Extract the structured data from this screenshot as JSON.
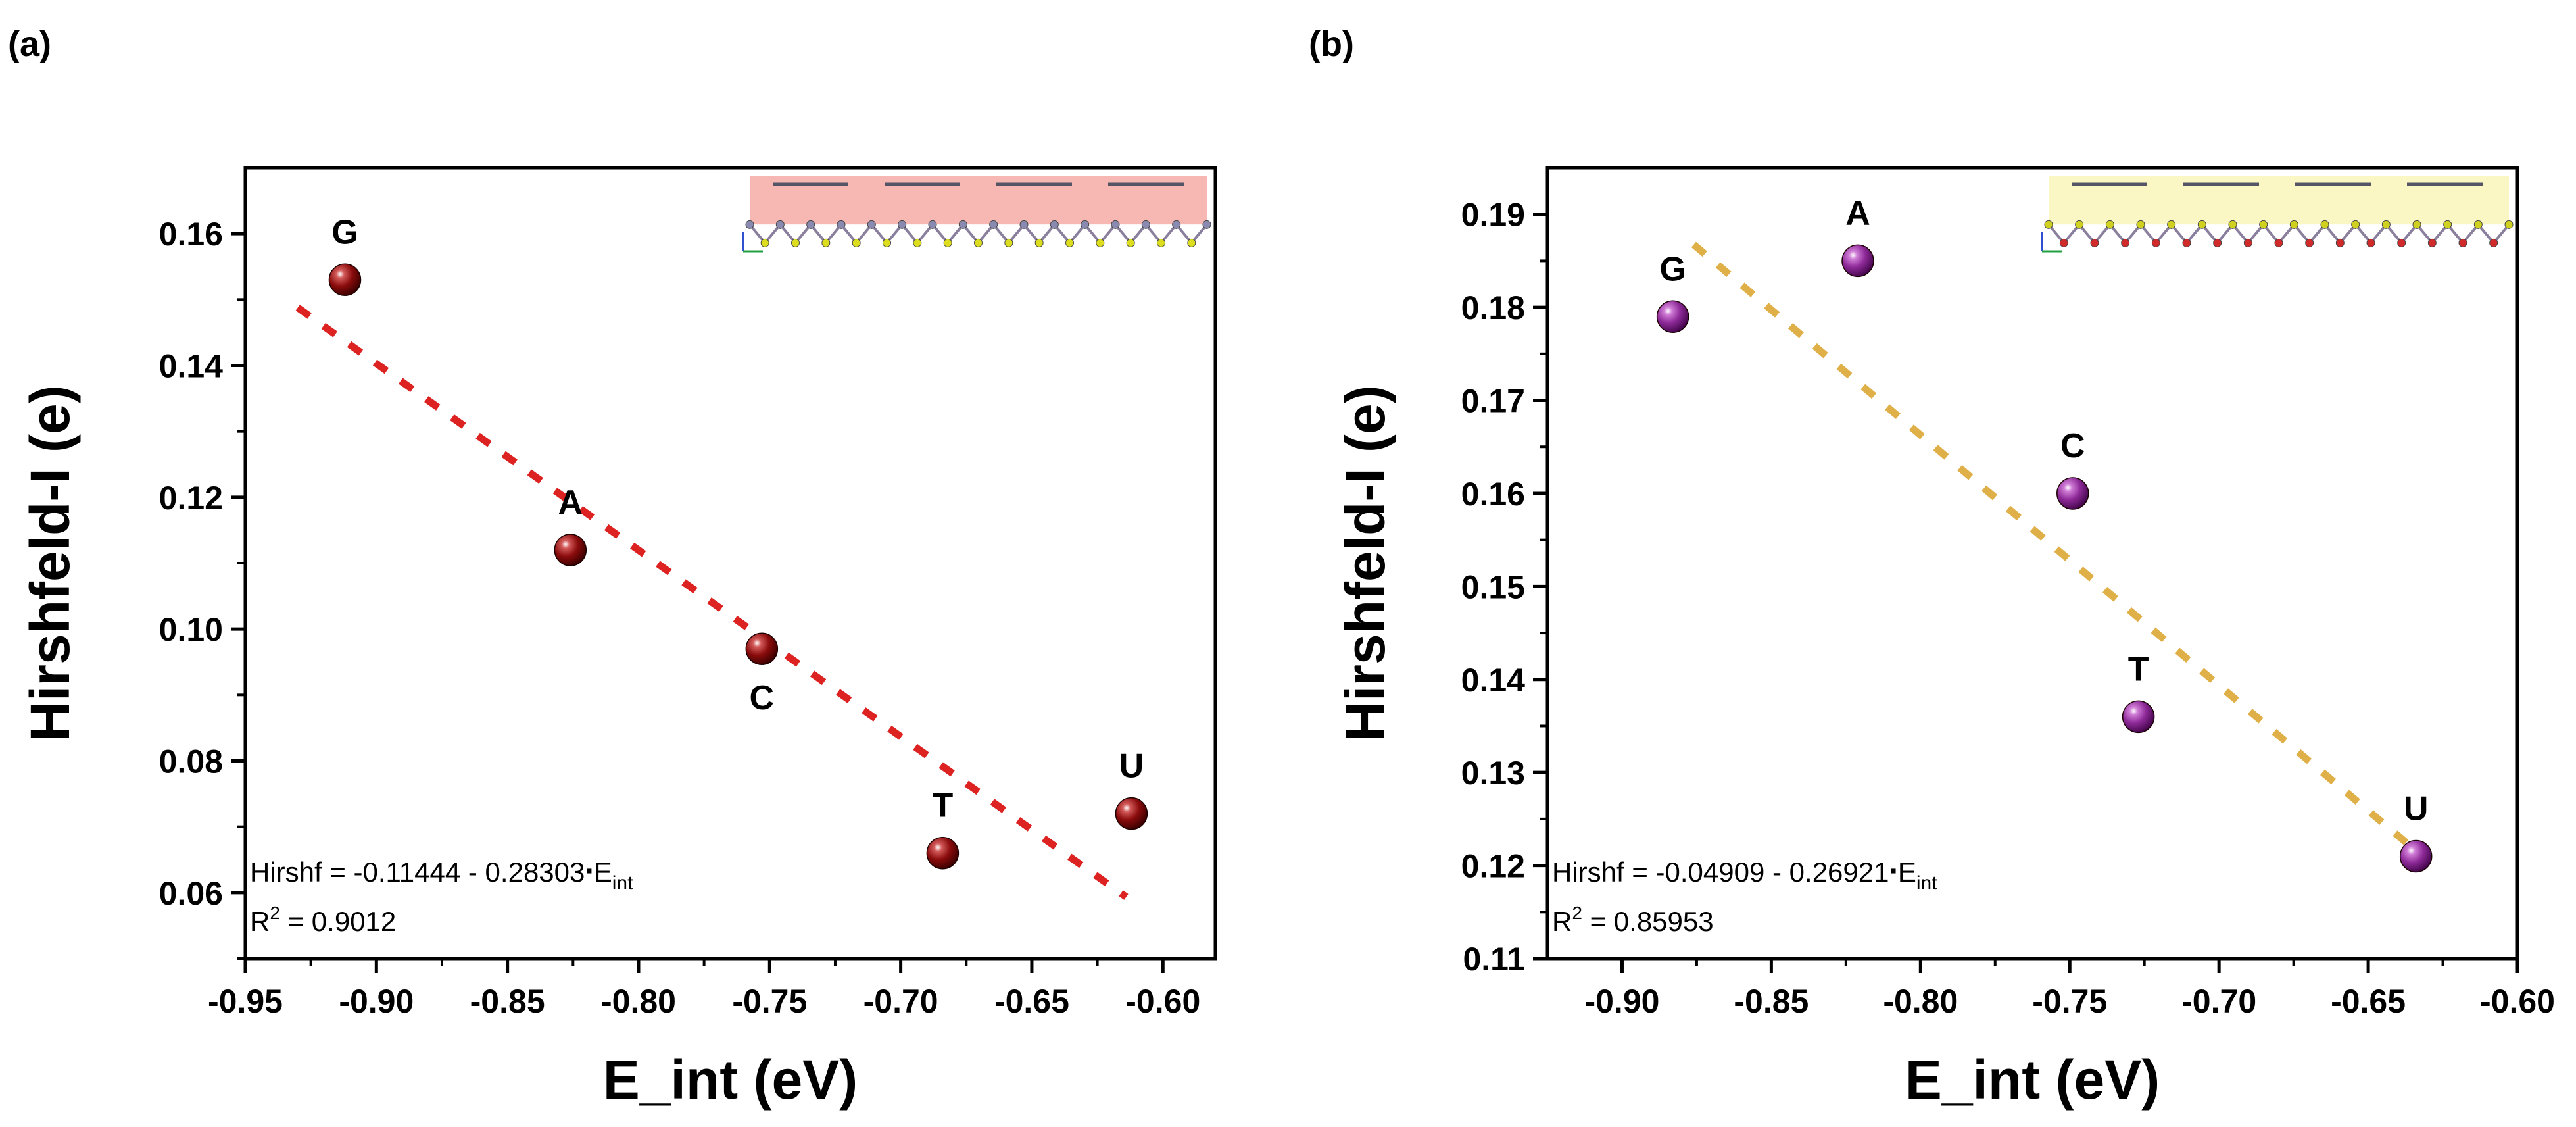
{
  "chart_data": [
    {
      "panel_label": "(a)",
      "type": "scatter",
      "xlabel": "E_int (eV)",
      "ylabel": "Hirshfeld-I (e)",
      "xlim": [
        -0.95,
        -0.58
      ],
      "ylim": [
        0.05,
        0.17
      ],
      "xticks": [
        -0.95,
        -0.9,
        -0.85,
        -0.8,
        -0.75,
        -0.7,
        -0.65,
        -0.6
      ],
      "xtick_labels": [
        "-0.95",
        "-0.90",
        "-0.85",
        "-0.80",
        "-0.75",
        "-0.70",
        "-0.65",
        "-0.60"
      ],
      "yticks": [
        0.06,
        0.08,
        0.1,
        0.12,
        0.14,
        0.16
      ],
      "ytick_labels": [
        "0.06",
        "0.08",
        "0.10",
        "0.12",
        "0.14",
        "0.16"
      ],
      "points": [
        {
          "label": "G",
          "x": -0.912,
          "y": 0.153
        },
        {
          "label": "A",
          "x": -0.826,
          "y": 0.112
        },
        {
          "label": "C",
          "x": -0.753,
          "y": 0.097
        },
        {
          "label": "T",
          "x": -0.684,
          "y": 0.066
        },
        {
          "label": "U",
          "x": -0.612,
          "y": 0.072
        }
      ],
      "point_color": "#8b0c0c",
      "fit": {
        "intercept": -0.11444,
        "slope": -0.28303,
        "x_range": [
          -0.93,
          -0.614
        ],
        "color": "#dd2222"
      },
      "equation": {
        "prefix": "Hirshf = -0.11444 - 0.28303",
        "dot": "∙",
        "var": "E",
        "sub": "int"
      },
      "r2": {
        "prefix": "R",
        "sup": "2",
        "value": " = 0.9012"
      },
      "inset_color": "#f7b8b4"
    },
    {
      "panel_label": "(b)",
      "type": "scatter",
      "xlabel": "E_int (eV)",
      "ylabel": "Hirshfeld-I (e)",
      "xlim": [
        -0.925,
        -0.6
      ],
      "ylim": [
        0.11,
        0.195
      ],
      "xticks": [
        -0.9,
        -0.85,
        -0.8,
        -0.75,
        -0.7,
        -0.65,
        -0.6
      ],
      "xtick_labels": [
        "-0.90",
        "-0.85",
        "-0.80",
        "-0.75",
        "-0.70",
        "-0.65",
        "-0.60"
      ],
      "yticks": [
        0.11,
        0.12,
        0.13,
        0.14,
        0.15,
        0.16,
        0.17,
        0.18,
        0.19
      ],
      "ytick_labels": [
        "0.11",
        "0.12",
        "0.13",
        "0.14",
        "0.15",
        "0.16",
        "0.17",
        "0.18",
        "0.19"
      ],
      "points": [
        {
          "label": "G",
          "x": -0.883,
          "y": 0.179
        },
        {
          "label": "A",
          "x": -0.821,
          "y": 0.185
        },
        {
          "label": "C",
          "x": -0.749,
          "y": 0.16
        },
        {
          "label": "T",
          "x": -0.727,
          "y": 0.136
        },
        {
          "label": "U",
          "x": -0.634,
          "y": 0.121
        }
      ],
      "point_color": "#8e2a98",
      "fit": {
        "intercept": -0.04909,
        "slope": -0.26921,
        "x_range": [
          -0.876,
          -0.637
        ],
        "color": "#e0b048"
      },
      "equation": {
        "prefix": "Hirshf = -0.04909 - 0.26921",
        "dot": "∙",
        "var": "E",
        "sub": "int"
      },
      "r2": {
        "prefix": "R",
        "sup": "2",
        "value": " = 0.85953"
      },
      "inset_color": "#fbf7c4"
    }
  ]
}
